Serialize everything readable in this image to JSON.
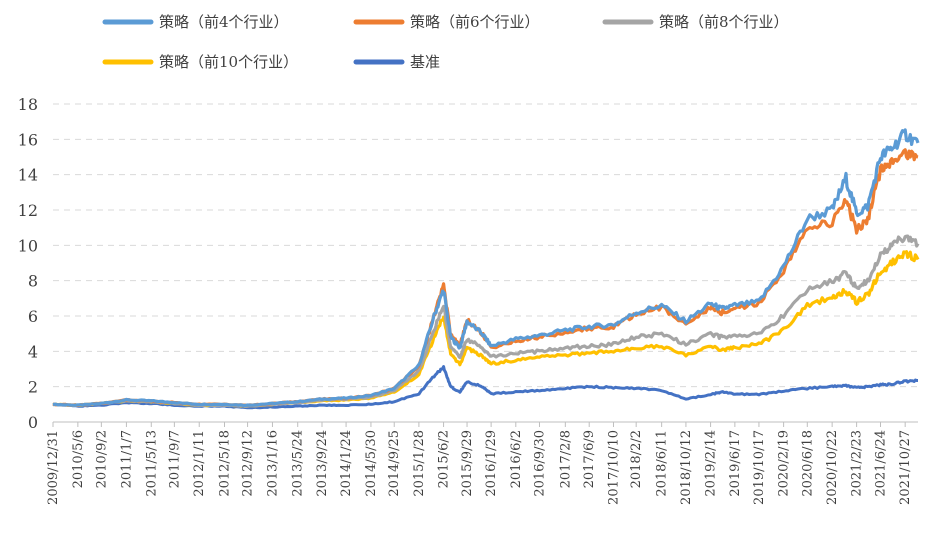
{
  "chart_data": {
    "type": "line",
    "title": "",
    "xlabel": "",
    "ylabel": "",
    "ylim": [
      0,
      18
    ],
    "yticks": [
      0,
      2,
      4,
      6,
      8,
      10,
      12,
      14,
      16,
      18
    ],
    "grid": true,
    "legend_position": "top",
    "x_tick_labels": [
      "2009/12/31",
      "2010/5/6",
      "2010/9/2",
      "2011/1/7",
      "2011/5/13",
      "2011/9/7",
      "2012/1/11",
      "2012/5/18",
      "2012/9/12",
      "2013/1/16",
      "2013/5/24",
      "2013/9/24",
      "2014/1/24",
      "2014/5/30",
      "2014/9/25",
      "2015/1/28",
      "2015/6/2",
      "2015/9/29",
      "2016/1/29",
      "2016/6/2",
      "2016/9/30",
      "2017/2/8",
      "2017/6/9",
      "2017/10/10",
      "2018/2/2",
      "2018/6/11",
      "2018/10/12",
      "2019/2/14",
      "2019/6/17",
      "2019/10/17",
      "2020/2/19",
      "2020/6/18",
      "2020/10/22",
      "2021/2/23",
      "2021/6/24",
      "2021/10/27"
    ],
    "x": [
      "2009/12/31",
      "2010/5/6",
      "2010/9/2",
      "2011/1/7",
      "2011/5/13",
      "2011/9/7",
      "2012/1/11",
      "2012/5/18",
      "2012/9/12",
      "2013/1/16",
      "2013/5/24",
      "2013/9/24",
      "2014/1/24",
      "2014/5/30",
      "2014/9/25",
      "2015/1/28",
      "2015/4/15",
      "2015/6/2",
      "2015/7/8",
      "2015/8/24",
      "2015/9/29",
      "2015/12/15",
      "2016/1/29",
      "2016/6/2",
      "2016/9/30",
      "2017/2/8",
      "2017/6/9",
      "2017/10/10",
      "2018/2/2",
      "2018/6/11",
      "2018/10/12",
      "2019/2/14",
      "2019/4/10",
      "2019/6/17",
      "2019/10/17",
      "2020/2/19",
      "2020/6/18",
      "2020/10/22",
      "2020/12/31",
      "2021/2/23",
      "2021/4/20",
      "2021/6/24",
      "2021/8/20",
      "2021/10/27",
      "2021/12/31"
    ],
    "series": [
      {
        "name": "策略（前4个行业）",
        "color": "#5b9bd5",
        "values": [
          1.0,
          0.95,
          1.05,
          1.25,
          1.2,
          1.1,
          1.0,
          1.0,
          0.95,
          1.05,
          1.15,
          1.3,
          1.35,
          1.5,
          1.9,
          3.2,
          6.0,
          7.5,
          4.8,
          4.2,
          5.7,
          5.0,
          4.3,
          4.7,
          4.9,
          5.2,
          5.4,
          5.5,
          6.2,
          6.6,
          5.7,
          6.7,
          6.4,
          6.6,
          6.8,
          8.8,
          11.5,
          12.0,
          13.8,
          11.8,
          12.2,
          15.0,
          15.5,
          16.3,
          15.8
        ]
      },
      {
        "name": "策略（前6个行业）",
        "color": "#ed7d31",
        "values": [
          1.0,
          0.95,
          1.05,
          1.25,
          1.2,
          1.1,
          1.0,
          1.0,
          0.95,
          1.05,
          1.15,
          1.3,
          1.35,
          1.5,
          1.9,
          3.2,
          6.0,
          7.8,
          4.9,
          4.3,
          5.8,
          5.0,
          4.2,
          4.6,
          4.8,
          5.1,
          5.3,
          5.4,
          6.1,
          6.5,
          5.5,
          6.5,
          6.2,
          6.4,
          6.7,
          8.6,
          11.0,
          11.3,
          12.6,
          10.8,
          11.5,
          14.2,
          14.6,
          15.3,
          15.0
        ]
      },
      {
        "name": "策略（前8个行业）",
        "color": "#a5a5a5",
        "values": [
          1.0,
          0.95,
          1.05,
          1.2,
          1.15,
          1.05,
          0.95,
          0.95,
          0.9,
          1.0,
          1.1,
          1.25,
          1.3,
          1.4,
          1.8,
          2.9,
          5.2,
          6.6,
          4.2,
          3.7,
          4.7,
          4.2,
          3.7,
          3.9,
          4.0,
          4.2,
          4.3,
          4.4,
          4.8,
          5.0,
          4.4,
          5.0,
          4.8,
          4.9,
          5.0,
          6.0,
          7.5,
          8.0,
          8.4,
          7.6,
          8.0,
          9.5,
          10.0,
          10.5,
          10.1
        ]
      },
      {
        "name": "策略（前10个行业）",
        "color": "#ffc000",
        "values": [
          1.0,
          0.95,
          1.05,
          1.2,
          1.15,
          1.05,
          0.95,
          0.95,
          0.9,
          1.0,
          1.1,
          1.2,
          1.25,
          1.35,
          1.7,
          2.7,
          4.8,
          6.0,
          3.8,
          3.3,
          4.2,
          3.7,
          3.3,
          3.5,
          3.7,
          3.8,
          3.9,
          4.0,
          4.2,
          4.3,
          3.8,
          4.3,
          4.1,
          4.2,
          4.4,
          5.2,
          6.6,
          7.1,
          7.4,
          6.8,
          7.2,
          8.5,
          9.0,
          9.6,
          9.2
        ]
      },
      {
        "name": "基准",
        "color": "#4472c4",
        "values": [
          1.0,
          0.9,
          0.95,
          1.1,
          1.05,
          0.95,
          0.9,
          0.9,
          0.8,
          0.85,
          0.9,
          0.95,
          0.95,
          1.0,
          1.15,
          1.6,
          2.6,
          3.1,
          2.0,
          1.7,
          2.3,
          2.0,
          1.6,
          1.7,
          1.8,
          1.9,
          2.0,
          1.95,
          1.9,
          1.8,
          1.3,
          1.55,
          1.7,
          1.6,
          1.55,
          1.75,
          1.9,
          2.0,
          2.05,
          1.95,
          2.0,
          2.1,
          2.15,
          2.3,
          2.35
        ]
      }
    ]
  }
}
